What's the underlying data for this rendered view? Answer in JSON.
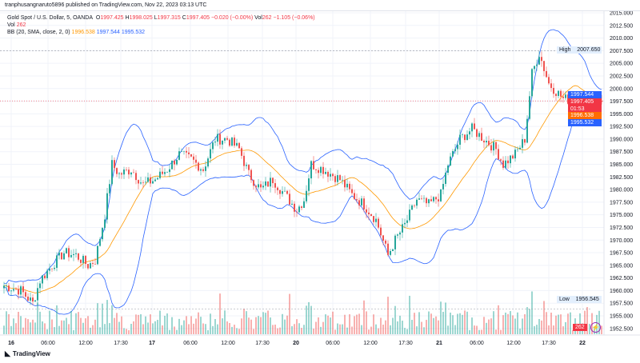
{
  "header": {
    "published": "tranphusangnaruto5896 published on TradingView.com, Nov 22, 2023 03:13 UTC"
  },
  "legend": {
    "symbol": "Gold Spot / U.S. Dollar, 5, OANDA",
    "o_label": "O",
    "o": "1997.425",
    "h_label": "H",
    "h": "1998.025",
    "l_label": "L",
    "l": "1997.315",
    "c_label": "C",
    "c": "1997.405",
    "change": "−0.020 (−0.00%)",
    "vol_label": "Vol",
    "vol": "262",
    "vol_change": "−1.105 (−0.06%)",
    "vol_row_label": "Vol",
    "vol_row": "262",
    "bb_label": "BB (20, SMA, close, 2, 0)",
    "bb_basis": "1996.538",
    "bb_upper": "1997.544",
    "bb_lower": "1995.532"
  },
  "price_axis": {
    "ticks": [
      "2015.000",
      "2012.500",
      "2010.000",
      "2007.500",
      "2005.000",
      "2002.500",
      "2000.000",
      "1997.500",
      "1995.000",
      "1992.500",
      "1990.000",
      "1987.500",
      "1985.000",
      "1982.500",
      "1980.000",
      "1977.500",
      "1975.000",
      "1972.500",
      "1970.000",
      "1967.500",
      "1965.000",
      "1962.500",
      "1960.000",
      "1957.500",
      "1955.000",
      "1952.500"
    ]
  },
  "badges": {
    "high_label": "High",
    "high": "2007.650",
    "low_label": "Low",
    "low": "1956.545",
    "upper": "1997.544",
    "last": "1997.405",
    "countdown": "01:53",
    "basis": "1996.538",
    "lower": "1995.532",
    "volume": "262"
  },
  "time_axis": [
    "16",
    "06:00",
    "12:00",
    "17:30",
    "17",
    "06:00",
    "12:00",
    "17:30",
    "20",
    "06:00",
    "12:00",
    "17:30",
    "21",
    "06:00",
    "12:00",
    "17:30",
    "22"
  ],
  "footer": {
    "brand": "TradingView"
  },
  "colors": {
    "up": "#26a69a",
    "down": "#ef5350",
    "bb": "#2962ff",
    "basis": "#ff9800"
  },
  "chart_data": {
    "type": "candlestick",
    "waypoints_bar_price": [
      [
        0,
        1961
      ],
      [
        7,
        1960
      ],
      [
        12,
        1957.5
      ],
      [
        15,
        1962
      ],
      [
        20,
        1965
      ],
      [
        25,
        1967.5
      ],
      [
        30,
        1967
      ],
      [
        35,
        1965
      ],
      [
        38,
        1966
      ],
      [
        42,
        1975
      ],
      [
        45,
        1985
      ],
      [
        48,
        1983
      ],
      [
        53,
        1984
      ],
      [
        58,
        1981
      ],
      [
        63,
        1982
      ],
      [
        68,
        1984
      ],
      [
        73,
        1987
      ],
      [
        78,
        1986
      ],
      [
        83,
        1984
      ],
      [
        88,
        1990
      ],
      [
        93,
        1990
      ],
      [
        98,
        1988
      ],
      [
        102,
        1983
      ],
      [
        107,
        1980
      ],
      [
        112,
        1982
      ],
      [
        117,
        1979
      ],
      [
        122,
        1976
      ],
      [
        125,
        1978
      ],
      [
        128,
        1985
      ],
      [
        133,
        1984
      ],
      [
        140,
        1982
      ],
      [
        145,
        1979
      ],
      [
        150,
        1977
      ],
      [
        155,
        1974
      ],
      [
        160,
        1967
      ],
      [
        163,
        1970
      ],
      [
        167,
        1973
      ],
      [
        172,
        1978
      ],
      [
        177,
        1977
      ],
      [
        182,
        1979
      ],
      [
        185,
        1985
      ],
      [
        190,
        1990
      ],
      [
        195,
        1992
      ],
      [
        200,
        1990
      ],
      [
        205,
        1988
      ],
      [
        208,
        1985
      ],
      [
        213,
        1987
      ],
      [
        217,
        1990
      ],
      [
        220,
        2003
      ],
      [
        223,
        2007
      ],
      [
        227,
        2001
      ],
      [
        233,
        1998
      ],
      [
        240,
        1997.5
      ],
      [
        245,
        1996
      ],
      [
        249,
        1997.4
      ]
    ],
    "high": 2007.65,
    "low": 1956.545,
    "ylim": [
      1951,
      2016
    ]
  }
}
